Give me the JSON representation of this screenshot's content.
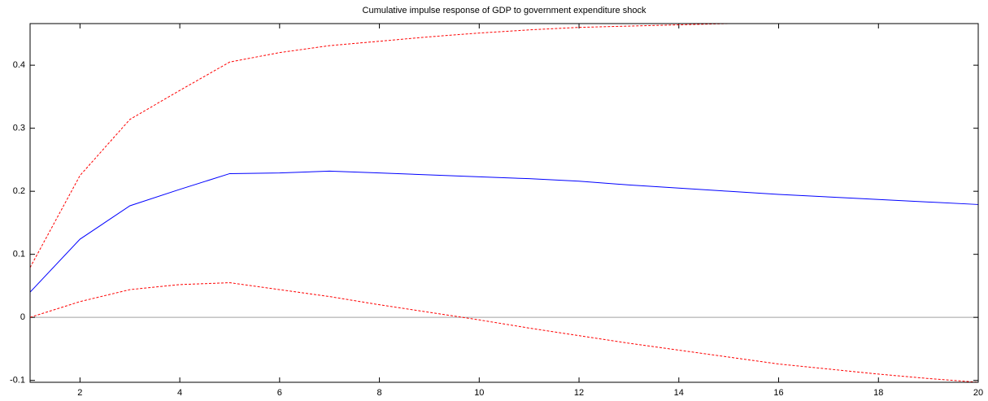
{
  "chart_data": {
    "type": "line",
    "title": "Cumulative impulse response of GDP to government expenditure shock",
    "x": [
      1,
      2,
      3,
      4,
      5,
      6,
      7,
      8,
      9,
      10,
      11,
      12,
      13,
      14,
      15,
      16,
      17,
      18,
      19,
      20
    ],
    "series": [
      {
        "color": "#0000ff",
        "style": "solid",
        "values": [
          0.04,
          0.124,
          0.177,
          0.203,
          0.228,
          0.229,
          0.232,
          0.229,
          0.226,
          0.223,
          0.22,
          0.216,
          0.21,
          0.205,
          0.2,
          0.195,
          0.191,
          0.187,
          0.183,
          0.179
        ]
      },
      {
        "color": "#ff0000",
        "style": "dashed",
        "values": [
          0.079,
          0.225,
          0.314,
          0.36,
          0.405,
          0.42,
          0.431,
          0.438,
          0.445,
          0.451,
          0.456,
          0.46,
          0.462,
          0.464,
          0.466,
          0.466,
          0.466,
          0.466,
          0.466,
          0.466
        ]
      },
      {
        "color": "#ff0000",
        "style": "dashed",
        "values": [
          0.0,
          0.025,
          0.044,
          0.052,
          0.055,
          0.044,
          0.033,
          0.02,
          0.008,
          -0.004,
          -0.017,
          -0.029,
          -0.041,
          -0.052,
          -0.063,
          -0.074,
          -0.082,
          -0.09,
          -0.097,
          -0.103
        ]
      }
    ],
    "xlim": [
      1,
      20
    ],
    "xticks": [
      2,
      4,
      6,
      8,
      10,
      12,
      14,
      16,
      18,
      20
    ],
    "ylim": [
      -0.103,
      0.466
    ],
    "yticks": [
      -0.1,
      0,
      0.1,
      0.2,
      0.3,
      0.4
    ],
    "zero_line": true,
    "grid": false
  }
}
